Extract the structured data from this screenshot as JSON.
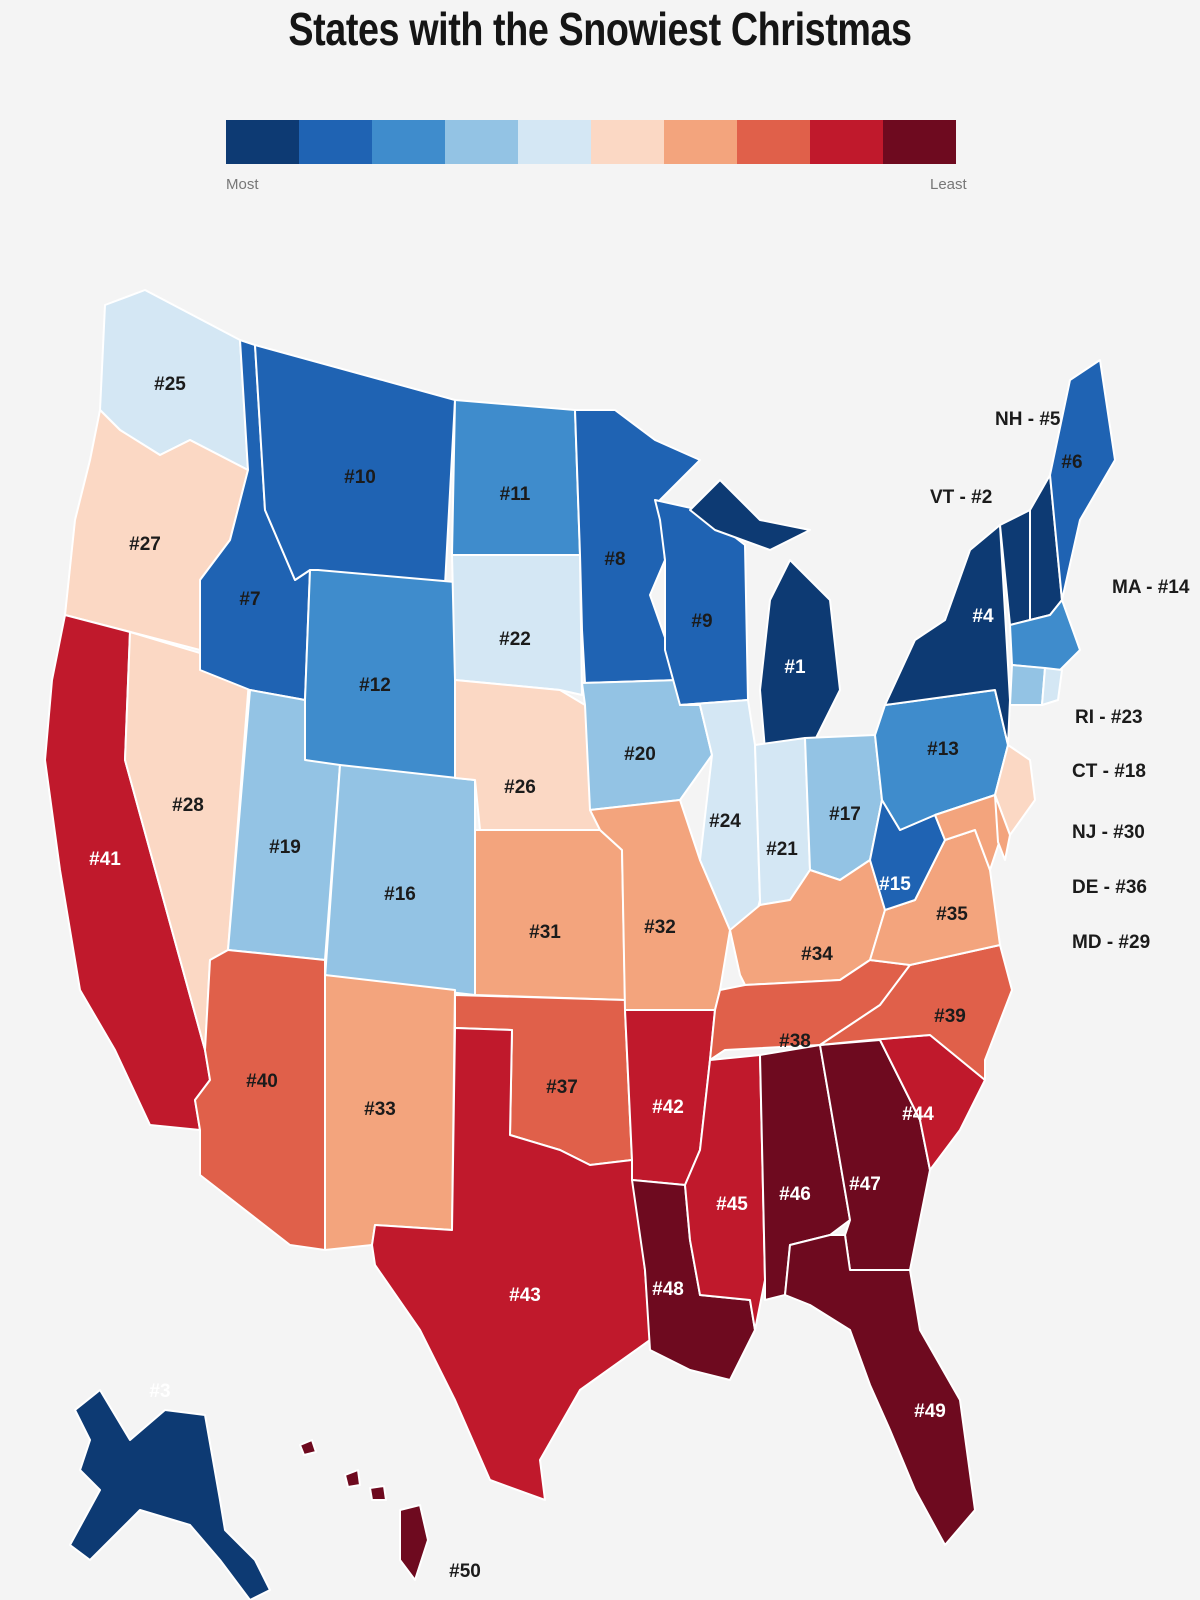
{
  "title": "States with the Snowiest Christmas",
  "legend": {
    "colors": [
      "#0d3a73",
      "#1f63b3",
      "#3f8ccc",
      "#93c3e4",
      "#d4e7f4",
      "#fbd8c4",
      "#f3a47d",
      "#e0604a",
      "#c0192c",
      "#6e0a1f"
    ],
    "low_label": "Most",
    "high_label": "Least"
  },
  "ranks": {
    "WA": "#25",
    "OR": "#27",
    "CA": "#41",
    "NV": "#28",
    "ID": "#7",
    "MT": "#10",
    "WY": "#12",
    "UT": "#19",
    "CO": "#16",
    "AZ": "#40",
    "NM": "#33",
    "ND": "#11",
    "SD": "#22",
    "NE": "#26",
    "KS": "#31",
    "OK": "#37",
    "TX": "#43",
    "MN": "#8",
    "IA": "#20",
    "MO": "#32",
    "AR": "#42",
    "LA": "#48",
    "WI": "#9",
    "IL": "#24",
    "MI": "#1",
    "IN": "#21",
    "OH": "#17",
    "KY": "#34",
    "TN": "#38",
    "MS": "#45",
    "AL": "#46",
    "GA": "#47",
    "FL": "#49",
    "SC": "#44",
    "NC": "#39",
    "VA": "#35",
    "WV": "#15",
    "PA": "#13",
    "NY": "#4",
    "ME": "#6",
    "AK": "#3",
    "HI": "#50"
  },
  "side_labels": {
    "NH": "NH - #5",
    "VT": "VT - #2",
    "MA": "MA - #14",
    "RI": "RI - #23",
    "CT": "CT - #18",
    "NJ": "NJ - #30",
    "DE": "DE - #36",
    "MD": "MD - #29"
  },
  "state_colors": {
    "WA": "#d4e7f4",
    "OR": "#fbd8c4",
    "CA": "#c0192c",
    "NV": "#fbd8c4",
    "ID": "#1f63b3",
    "MT": "#1f63b3",
    "WY": "#3f8ccc",
    "UT": "#93c3e4",
    "CO": "#93c3e4",
    "AZ": "#e0604a",
    "NM": "#f3a47d",
    "ND": "#3f8ccc",
    "SD": "#d4e7f4",
    "NE": "#fbd8c4",
    "KS": "#f3a47d",
    "OK": "#e0604a",
    "TX": "#c0192c",
    "MN": "#1f63b3",
    "IA": "#93c3e4",
    "MO": "#f3a47d",
    "AR": "#c0192c",
    "LA": "#6e0a1f",
    "WI": "#1f63b3",
    "IL": "#d4e7f4",
    "MI": "#0d3a73",
    "IN": "#d4e7f4",
    "OH": "#93c3e4",
    "KY": "#f3a47d",
    "TN": "#e0604a",
    "MS": "#c0192c",
    "AL": "#6e0a1f",
    "GA": "#6e0a1f",
    "FL": "#6e0a1f",
    "SC": "#c0192c",
    "NC": "#e0604a",
    "VA": "#f3a47d",
    "WV": "#1f63b3",
    "PA": "#3f8ccc",
    "NY": "#0d3a73",
    "ME": "#1f63b3",
    "NH": "#0d3a73",
    "VT": "#0d3a73",
    "MA": "#3f8ccc",
    "RI": "#d4e7f4",
    "CT": "#93c3e4",
    "NJ": "#fbd8c4",
    "DE": "#f3a47d",
    "MD": "#f3a47d",
    "AK": "#0d3a73",
    "HI": "#6e0a1f"
  }
}
